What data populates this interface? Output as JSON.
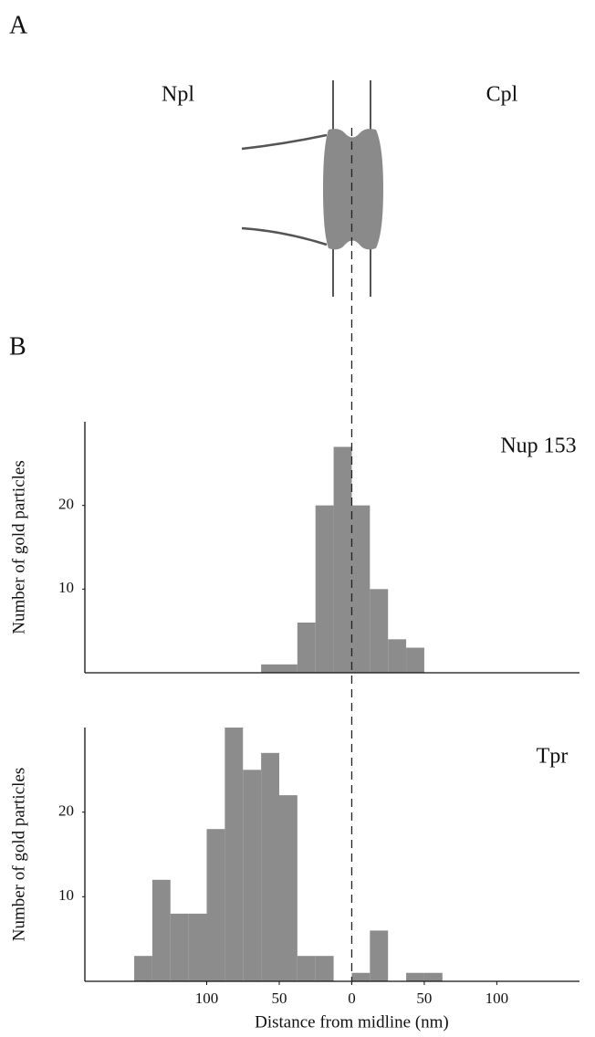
{
  "panel_labels": [
    "A",
    "B"
  ],
  "diagram": {
    "left_label": "Npl",
    "right_label": "Cpl"
  },
  "chart_data": [
    {
      "type": "histogram",
      "title": "Nup 153",
      "ylabel": "Number of gold particles",
      "bins": [
        -62.5,
        -50,
        -37.5,
        -25,
        -12.5,
        0,
        12.5,
        25,
        37.5,
        50
      ],
      "values": [
        1,
        1,
        6,
        20,
        27,
        20,
        10,
        4,
        3
      ],
      "color": "#8c8c8c",
      "xlim": [
        -184,
        157
      ],
      "ylim": [
        0,
        30
      ],
      "yticks": [
        10,
        20
      ]
    },
    {
      "type": "histogram",
      "title": "Tpr",
      "ylabel": "Number of gold particles",
      "xlabel": "Distance from midline (nm)",
      "bins": [
        -150,
        -137.5,
        -125,
        -112.5,
        -100,
        -87.5,
        -75,
        -62.5,
        -50,
        -37.5,
        -25,
        -12.5,
        0,
        12.5,
        25,
        37.5,
        50,
        62.5
      ],
      "values": [
        3,
        12,
        8,
        8,
        18,
        30,
        25,
        27,
        22,
        3,
        3,
        0,
        1,
        6,
        0,
        1,
        1
      ],
      "color": "#8c8c8c",
      "xlim": [
        -184,
        157
      ],
      "ylim": [
        0,
        30
      ],
      "yticks": [
        10,
        20
      ],
      "xticks": [
        {
          "value": -100,
          "label": "100"
        },
        {
          "value": -50,
          "label": "50"
        },
        0,
        50,
        100
      ]
    }
  ]
}
